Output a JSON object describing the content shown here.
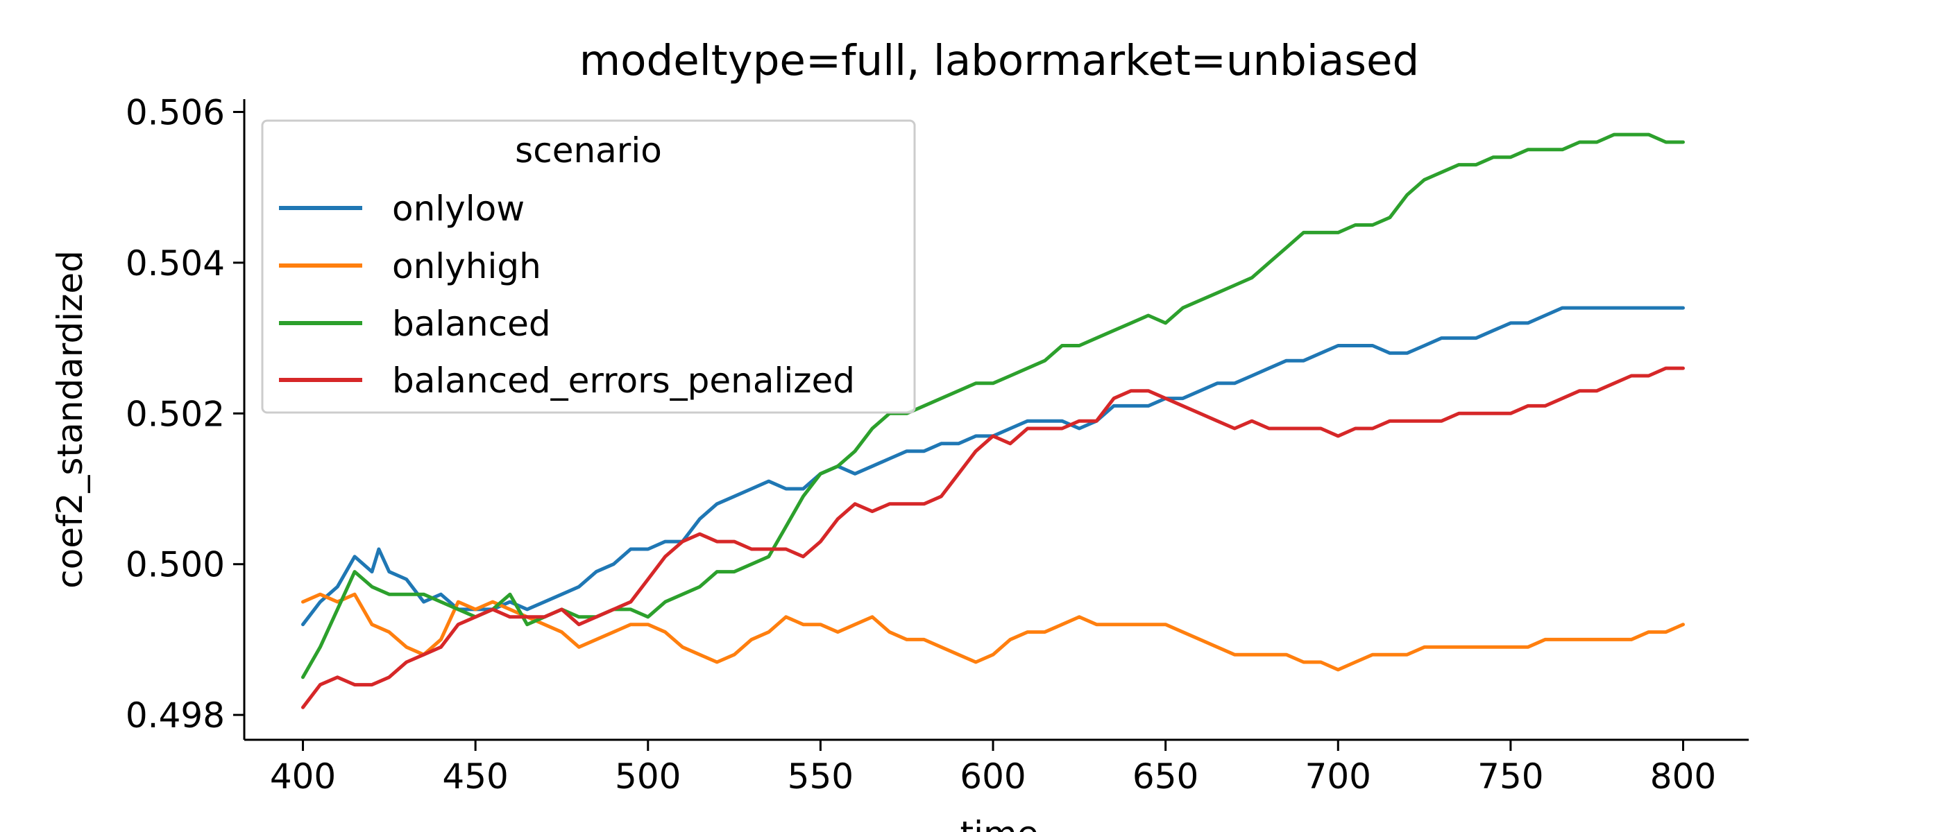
{
  "chart_data": {
    "type": "line",
    "title": "modeltype=full, labormarket=unbiased",
    "xlabel": "time",
    "ylabel": "coef2_standardized",
    "xlim": [
      383,
      819
    ],
    "ylim": [
      0.49767,
      0.50617
    ],
    "xticks": [
      "400",
      "450",
      "500",
      "550",
      "600",
      "650",
      "700",
      "750",
      "800"
    ],
    "yticks": [
      "0.498",
      "0.500",
      "0.502",
      "0.504",
      "0.506"
    ],
    "grid": false,
    "legend": {
      "title": "scenario",
      "placement": "upper-left"
    },
    "series": [
      {
        "name": "onlylow",
        "color": "#1f77b4",
        "x": [
          400,
          405,
          410,
          415,
          420,
          422,
          425,
          430,
          435,
          440,
          445,
          450,
          455,
          460,
          465,
          470,
          475,
          480,
          485,
          490,
          495,
          500,
          505,
          510,
          515,
          520,
          525,
          530,
          535,
          540,
          545,
          550,
          555,
          560,
          565,
          570,
          575,
          580,
          585,
          590,
          595,
          600,
          605,
          610,
          615,
          620,
          625,
          630,
          635,
          640,
          645,
          650,
          655,
          660,
          665,
          670,
          675,
          680,
          685,
          690,
          695,
          700,
          705,
          710,
          715,
          720,
          725,
          730,
          735,
          740,
          745,
          750,
          755,
          760,
          765,
          770,
          775,
          780,
          785,
          790,
          795,
          800
        ],
        "values": [
          0.4992,
          0.4995,
          0.4997,
          0.5001,
          0.4999,
          0.5002,
          0.4999,
          0.4998,
          0.4995,
          0.4996,
          0.4994,
          0.4994,
          0.4994,
          0.4995,
          0.4994,
          0.4995,
          0.4996,
          0.4997,
          0.4999,
          0.5,
          0.5002,
          0.5002,
          0.5003,
          0.5003,
          0.5006,
          0.5008,
          0.5009,
          0.501,
          0.5011,
          0.501,
          0.501,
          0.5012,
          0.5013,
          0.5012,
          0.5013,
          0.5014,
          0.5015,
          0.5015,
          0.5016,
          0.5016,
          0.5017,
          0.5017,
          0.5018,
          0.5019,
          0.5019,
          0.5019,
          0.5018,
          0.5019,
          0.5021,
          0.5021,
          0.5021,
          0.5022,
          0.5022,
          0.5023,
          0.5024,
          0.5024,
          0.5025,
          0.5026,
          0.5027,
          0.5027,
          0.5028,
          0.5029,
          0.5029,
          0.5029,
          0.5028,
          0.5028,
          0.5029,
          0.503,
          0.503,
          0.503,
          0.5031,
          0.5032,
          0.5032,
          0.5033,
          0.5034,
          0.5034,
          0.5034,
          0.5034,
          0.5034,
          0.5034,
          0.5034,
          0.5034
        ]
      },
      {
        "name": "onlyhigh",
        "color": "#ff7f0e",
        "x": [
          400,
          405,
          410,
          415,
          420,
          425,
          430,
          435,
          440,
          445,
          450,
          455,
          460,
          465,
          470,
          475,
          480,
          485,
          490,
          495,
          500,
          505,
          510,
          515,
          520,
          525,
          530,
          535,
          540,
          545,
          550,
          555,
          560,
          565,
          570,
          575,
          580,
          585,
          590,
          595,
          600,
          605,
          610,
          615,
          620,
          625,
          630,
          635,
          640,
          645,
          650,
          655,
          660,
          665,
          670,
          675,
          680,
          685,
          690,
          695,
          700,
          705,
          710,
          715,
          720,
          725,
          730,
          735,
          740,
          745,
          750,
          755,
          760,
          765,
          770,
          775,
          780,
          785,
          790,
          795,
          800
        ],
        "values": [
          0.4995,
          0.4996,
          0.4995,
          0.4996,
          0.4992,
          0.4991,
          0.4989,
          0.4988,
          0.499,
          0.4995,
          0.4994,
          0.4995,
          0.4994,
          0.4993,
          0.4992,
          0.4991,
          0.4989,
          0.499,
          0.4991,
          0.4992,
          0.4992,
          0.4991,
          0.4989,
          0.4988,
          0.4987,
          0.4988,
          0.499,
          0.4991,
          0.4993,
          0.4992,
          0.4992,
          0.4991,
          0.4992,
          0.4993,
          0.4991,
          0.499,
          0.499,
          0.4989,
          0.4988,
          0.4987,
          0.4988,
          0.499,
          0.4991,
          0.4991,
          0.4992,
          0.4993,
          0.4992,
          0.4992,
          0.4992,
          0.4992,
          0.4992,
          0.4991,
          0.499,
          0.4989,
          0.4988,
          0.4988,
          0.4988,
          0.4988,
          0.4987,
          0.4987,
          0.4986,
          0.4987,
          0.4988,
          0.4988,
          0.4988,
          0.4989,
          0.4989,
          0.4989,
          0.4989,
          0.4989,
          0.4989,
          0.4989,
          0.499,
          0.499,
          0.499,
          0.499,
          0.499,
          0.499,
          0.4991,
          0.4991,
          0.4992
        ]
      },
      {
        "name": "balanced",
        "color": "#2ca02c",
        "x": [
          400,
          405,
          410,
          415,
          420,
          425,
          430,
          435,
          440,
          445,
          450,
          455,
          460,
          465,
          470,
          475,
          480,
          485,
          490,
          495,
          500,
          505,
          510,
          515,
          520,
          525,
          530,
          535,
          540,
          545,
          550,
          555,
          560,
          565,
          570,
          575,
          580,
          585,
          590,
          595,
          600,
          605,
          610,
          615,
          620,
          625,
          630,
          635,
          640,
          645,
          650,
          655,
          660,
          665,
          670,
          675,
          680,
          685,
          690,
          695,
          700,
          705,
          710,
          715,
          720,
          725,
          730,
          735,
          740,
          745,
          750,
          755,
          760,
          765,
          770,
          775,
          780,
          785,
          790,
          795,
          800
        ],
        "values": [
          0.4985,
          0.4989,
          0.4994,
          0.4999,
          0.4997,
          0.4996,
          0.4996,
          0.4996,
          0.4995,
          0.4994,
          0.4993,
          0.4994,
          0.4996,
          0.4992,
          0.4993,
          0.4994,
          0.4993,
          0.4993,
          0.4994,
          0.4994,
          0.4993,
          0.4995,
          0.4996,
          0.4997,
          0.4999,
          0.4999,
          0.5,
          0.5001,
          0.5005,
          0.5009,
          0.5012,
          0.5013,
          0.5015,
          0.5018,
          0.502,
          0.502,
          0.5021,
          0.5022,
          0.5023,
          0.5024,
          0.5024,
          0.5025,
          0.5026,
          0.5027,
          0.5029,
          0.5029,
          0.503,
          0.5031,
          0.5032,
          0.5033,
          0.5032,
          0.5034,
          0.5035,
          0.5036,
          0.5037,
          0.5038,
          0.504,
          0.5042,
          0.5044,
          0.5044,
          0.5044,
          0.5045,
          0.5045,
          0.5046,
          0.5049,
          0.5051,
          0.5052,
          0.5053,
          0.5053,
          0.5054,
          0.5054,
          0.5055,
          0.5055,
          0.5055,
          0.5056,
          0.5056,
          0.5057,
          0.5057,
          0.5057,
          0.5056,
          0.5056
        ]
      },
      {
        "name": "balanced_errors_penalized",
        "color": "#d62728",
        "x": [
          400,
          405,
          410,
          415,
          420,
          425,
          430,
          435,
          440,
          445,
          450,
          455,
          460,
          465,
          470,
          475,
          480,
          485,
          490,
          495,
          500,
          505,
          510,
          515,
          520,
          525,
          530,
          535,
          540,
          545,
          550,
          555,
          560,
          565,
          570,
          575,
          580,
          585,
          590,
          595,
          600,
          605,
          610,
          615,
          620,
          625,
          630,
          635,
          640,
          645,
          650,
          655,
          660,
          665,
          670,
          675,
          680,
          685,
          690,
          695,
          700,
          705,
          710,
          715,
          720,
          725,
          730,
          735,
          740,
          745,
          750,
          755,
          760,
          765,
          770,
          775,
          780,
          785,
          790,
          795,
          800
        ],
        "values": [
          0.4981,
          0.4984,
          0.4985,
          0.4984,
          0.4984,
          0.4985,
          0.4987,
          0.4988,
          0.4989,
          0.4992,
          0.4993,
          0.4994,
          0.4993,
          0.4993,
          0.4993,
          0.4994,
          0.4992,
          0.4993,
          0.4994,
          0.4995,
          0.4998,
          0.5001,
          0.5003,
          0.5004,
          0.5003,
          0.5003,
          0.5002,
          0.5002,
          0.5002,
          0.5001,
          0.5003,
          0.5006,
          0.5008,
          0.5007,
          0.5008,
          0.5008,
          0.5008,
          0.5009,
          0.5012,
          0.5015,
          0.5017,
          0.5016,
          0.5018,
          0.5018,
          0.5018,
          0.5019,
          0.5019,
          0.5022,
          0.5023,
          0.5023,
          0.5022,
          0.5021,
          0.502,
          0.5019,
          0.5018,
          0.5019,
          0.5018,
          0.5018,
          0.5018,
          0.5018,
          0.5017,
          0.5018,
          0.5018,
          0.5019,
          0.5019,
          0.5019,
          0.5019,
          0.502,
          0.502,
          0.502,
          0.502,
          0.5021,
          0.5021,
          0.5022,
          0.5023,
          0.5023,
          0.5024,
          0.5025,
          0.5025,
          0.5026,
          0.5026
        ]
      }
    ]
  }
}
